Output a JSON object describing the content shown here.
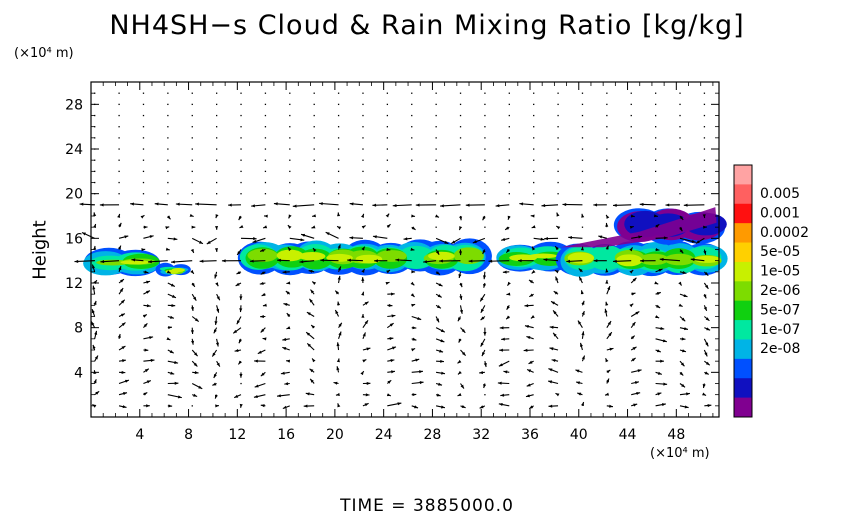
{
  "chart_data": {
    "type": "heatmap",
    "title": "NH4SH−s Cloud & Rain Mixing Ratio [kg/kg]",
    "ylabel": "Height",
    "y_unit": "(×10⁴ m)",
    "x_unit": "(×10⁴ m)",
    "x_ticks": [
      "4",
      "8",
      "12",
      "16",
      "20",
      "24",
      "28",
      "32",
      "36",
      "40",
      "44",
      "48"
    ],
    "y_ticks": [
      "4",
      "8",
      "12",
      "16",
      "20",
      "24",
      "28"
    ],
    "xlim": [
      0,
      51.5
    ],
    "ylim": [
      0,
      30
    ],
    "colorbar": {
      "labels": [
        "0.005",
        "0.001",
        "0.0002",
        "5e-05",
        "1e-05",
        "2e-06",
        "5e-07",
        "1e-07",
        "2e-08"
      ],
      "colors": [
        "#ffa3a3",
        "#ff6060",
        "#ff1010",
        "#ff9a00",
        "#ffd000",
        "#c8f000",
        "#7ddc00",
        "#10d010",
        "#00e8a0",
        "#00b4e6",
        "#0050ff",
        "#1010c0",
        "#800090"
      ]
    },
    "cloud_bands": [
      {
        "x0": 0.3,
        "x1": 5.0,
        "y0": 12.6,
        "y1": 15.0
      },
      {
        "x0": 6.0,
        "x1": 7.5,
        "y0": 12.6,
        "y1": 13.6
      },
      {
        "x0": 13.0,
        "x1": 32.0,
        "y0": 12.8,
        "y1": 15.8
      },
      {
        "x0": 34.0,
        "x1": 38.5,
        "y0": 13.0,
        "y1": 15.6
      },
      {
        "x0": 39.0,
        "x1": 51.5,
        "y0": 12.6,
        "y1": 15.6
      },
      {
        "x0": 44.0,
        "x1": 51.3,
        "y0": 15.6,
        "y1": 18.6
      }
    ]
  },
  "footer": "TIME  =  3885000.0"
}
